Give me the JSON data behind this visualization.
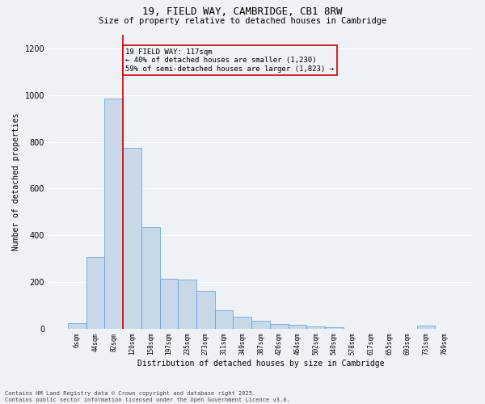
{
  "title_line1": "19, FIELD WAY, CAMBRIDGE, CB1 8RW",
  "title_line2": "Size of property relative to detached houses in Cambridge",
  "xlabel": "Distribution of detached houses by size in Cambridge",
  "ylabel": "Number of detached properties",
  "categories": [
    "6sqm",
    "44sqm",
    "82sqm",
    "120sqm",
    "158sqm",
    "197sqm",
    "235sqm",
    "273sqm",
    "311sqm",
    "349sqm",
    "387sqm",
    "426sqm",
    "464sqm",
    "502sqm",
    "540sqm",
    "578sqm",
    "617sqm",
    "655sqm",
    "693sqm",
    "731sqm",
    "769sqm"
  ],
  "values": [
    22,
    308,
    985,
    775,
    435,
    213,
    210,
    163,
    80,
    53,
    35,
    20,
    15,
    10,
    8,
    0,
    0,
    0,
    0,
    12,
    0
  ],
  "bar_color": "#c8d8e8",
  "bar_edge_color": "#5b9bd5",
  "vline_color": "#cc0000",
  "annotation_text": "19 FIELD WAY: 117sqm\n← 40% of detached houses are smaller (1,230)\n59% of semi-detached houses are larger (1,823) →",
  "box_color": "#cc0000",
  "ylim": [
    0,
    1260
  ],
  "yticks": [
    0,
    200,
    400,
    600,
    800,
    1000,
    1200
  ],
  "background_color": "#eef2f7",
  "grid_color": "#ffffff",
  "footer_line1": "Contains HM Land Registry data © Crown copyright and database right 2025.",
  "footer_line2": "Contains public sector information licensed under the Open Government Licence v3.0.",
  "figsize": [
    6.0,
    5.0
  ],
  "dpi": 100
}
